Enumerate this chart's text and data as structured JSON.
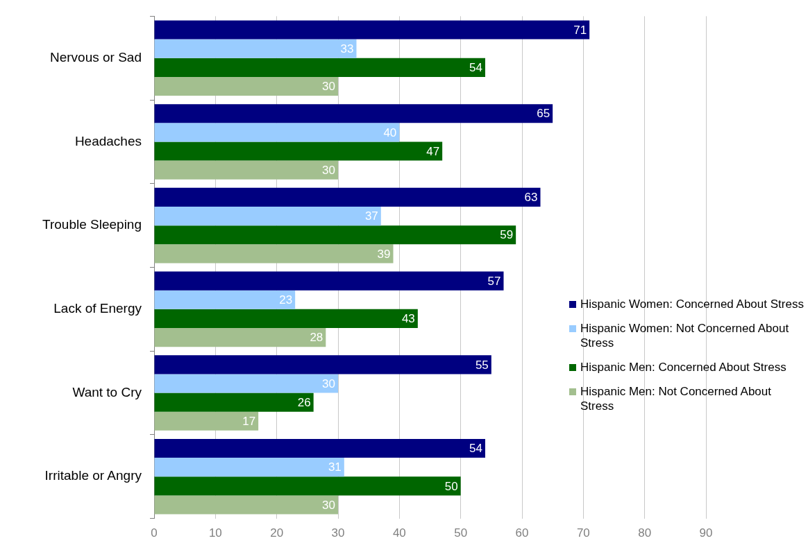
{
  "chart_data": {
    "type": "bar",
    "orientation": "horizontal",
    "categories": [
      "Nervous or Sad",
      "Headaches",
      "Trouble Sleeping",
      "Lack of Energy",
      "Want to Cry",
      "Irritable or Angry"
    ],
    "series": [
      {
        "name": "Hispanic Women: Concerned About Stress",
        "color": "#000080",
        "values": [
          71,
          65,
          63,
          57,
          55,
          54
        ]
      },
      {
        "name": "Hispanic Women: Not Concerned About Stress",
        "color": "#99ccff",
        "values": [
          33,
          40,
          37,
          23,
          30,
          31
        ]
      },
      {
        "name": "Hispanic Men: Concerned About Stress",
        "color": "#006600",
        "values": [
          54,
          47,
          59,
          43,
          26,
          50
        ]
      },
      {
        "name": "Hispanic Men: Not Concerned About Stress",
        "color": "#a3bf8f",
        "values": [
          30,
          30,
          39,
          28,
          17,
          30
        ]
      }
    ],
    "xlim": [
      0,
      90
    ],
    "xticks": [
      0,
      10,
      20,
      30,
      40,
      50,
      60,
      70,
      80,
      90
    ],
    "grid": "x",
    "legend": "right",
    "data_labels": true
  }
}
